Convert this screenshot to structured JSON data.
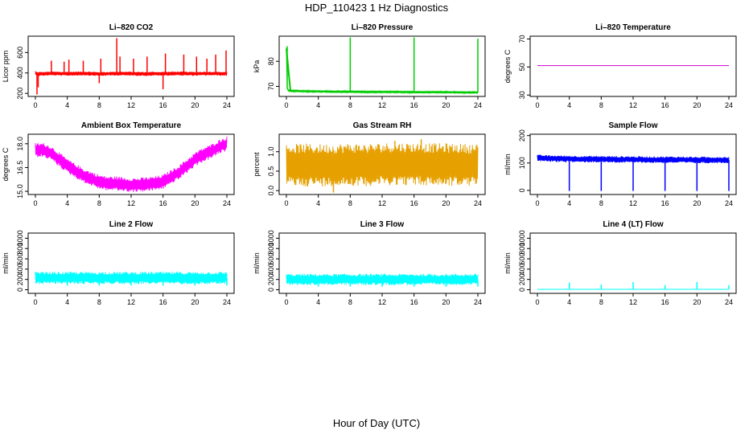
{
  "figure": {
    "title": "HDP_110423  1 Hz Diagnostics",
    "xlabel": "Hour of Day (UTC)"
  },
  "chart_data": [
    {
      "id": "co2",
      "type": "line",
      "title": "Li–820 CO2",
      "ylabel": "Licor ppm",
      "color": "#ff0000",
      "xlim": [
        0,
        24
      ],
      "ylim": [
        170,
        760
      ],
      "xticks": [
        0,
        4,
        8,
        12,
        16,
        20,
        24
      ],
      "yticks": [
        200,
        400,
        600
      ],
      "x": [
        0,
        0.2,
        1,
        2,
        3,
        4,
        5,
        6,
        7,
        8,
        9,
        10,
        11,
        12,
        13,
        14,
        15,
        16,
        17,
        18,
        19,
        20,
        21,
        22,
        23,
        24
      ],
      "values": [
        400,
        390,
        392,
        395,
        393,
        392,
        394,
        396,
        393,
        390,
        392,
        395,
        394,
        393,
        392,
        391,
        393,
        392,
        394,
        395,
        393,
        392,
        394,
        395,
        393,
        392
      ],
      "spikes": [
        {
          "x": 0.2,
          "y": 190
        },
        {
          "x": 0.35,
          "y": 260
        },
        {
          "x": 2.0,
          "y": 520
        },
        {
          "x": 3.6,
          "y": 510
        },
        {
          "x": 4.2,
          "y": 530
        },
        {
          "x": 6.0,
          "y": 520
        },
        {
          "x": 8.0,
          "y": 300
        },
        {
          "x": 8.2,
          "y": 540
        },
        {
          "x": 10.2,
          "y": 740
        },
        {
          "x": 10.6,
          "y": 560
        },
        {
          "x": 12.3,
          "y": 540
        },
        {
          "x": 14.0,
          "y": 560
        },
        {
          "x": 16.0,
          "y": 240
        },
        {
          "x": 16.3,
          "y": 590
        },
        {
          "x": 18.6,
          "y": 580
        },
        {
          "x": 20.2,
          "y": 560
        },
        {
          "x": 21.5,
          "y": 540
        },
        {
          "x": 22.6,
          "y": 580
        },
        {
          "x": 23.9,
          "y": 620
        }
      ],
      "band": 20
    },
    {
      "id": "pressure",
      "type": "line",
      "title": "Li–820 Pressure",
      "ylabel": "kPa",
      "color": "#00cc00",
      "xlim": [
        0,
        24
      ],
      "ylim": [
        66,
        90
      ],
      "xticks": [
        0,
        4,
        8,
        12,
        16,
        20,
        24
      ],
      "yticks": [
        70,
        80
      ],
      "x": [
        0,
        0.1,
        0.3,
        1,
        2,
        4,
        6,
        8,
        10,
        12,
        14,
        16,
        18,
        20,
        22,
        24
      ],
      "values": [
        85,
        69,
        68.3,
        68.2,
        68.1,
        68.0,
        67.9,
        67.9,
        67.8,
        67.8,
        67.8,
        67.7,
        67.7,
        67.7,
        67.6,
        67.6
      ],
      "spikes": [
        {
          "x": 0.1,
          "y": 86
        },
        {
          "x": 8.0,
          "y": 89.5
        },
        {
          "x": 16.0,
          "y": 89.5
        },
        {
          "x": 24.0,
          "y": 89
        }
      ],
      "band": 0.3
    },
    {
      "id": "temperature",
      "type": "line",
      "title": "Li–820 Temperature",
      "ylabel": "degrees C",
      "color": "#cc00cc",
      "xlim": [
        0,
        24
      ],
      "ylim": [
        29,
        72
      ],
      "xticks": [
        0,
        4,
        8,
        12,
        16,
        20,
        24
      ],
      "yticks": [
        30,
        50,
        70
      ],
      "x": [
        0,
        24
      ],
      "values": [
        51,
        51
      ],
      "spikes": [],
      "band": 0
    },
    {
      "id": "ambient",
      "type": "line",
      "title": "Ambient Box Temperature",
      "ylabel": "degrees C",
      "color": "#ff00ff",
      "xlim": [
        0,
        24
      ],
      "ylim": [
        14.8,
        18.6
      ],
      "xticks": [
        0,
        4,
        8,
        12,
        16,
        20,
        24
      ],
      "yticks": [
        15.0,
        16.5,
        18.0
      ],
      "x": [
        0,
        1,
        2,
        3,
        4,
        5,
        6,
        7,
        8,
        9,
        10,
        11,
        12,
        13,
        14,
        15,
        16,
        17,
        18,
        19,
        20,
        21,
        22,
        23,
        24
      ],
      "values": [
        17.6,
        17.6,
        17.4,
        17.0,
        16.6,
        16.3,
        16.0,
        15.8,
        15.6,
        15.5,
        15.5,
        15.45,
        15.4,
        15.4,
        15.45,
        15.5,
        15.6,
        15.9,
        16.2,
        16.6,
        17.0,
        17.3,
        17.5,
        17.8,
        18.0
      ],
      "spikes": [],
      "band": 0.45
    },
    {
      "id": "rh",
      "type": "line",
      "title": "Gas Stream RH",
      "ylabel": "percent",
      "color": "#e6a000",
      "xlim": [
        0,
        24
      ],
      "ylim": [
        -0.1,
        1.45
      ],
      "xticks": [
        0,
        4,
        8,
        12,
        16,
        20,
        24
      ],
      "yticks": [
        0.0,
        0.5,
        1.0
      ],
      "x": [
        0,
        2,
        4,
        6,
        8,
        10,
        12,
        14,
        16,
        18,
        20,
        22,
        24
      ],
      "values": [
        0.65,
        0.66,
        0.65,
        0.66,
        0.67,
        0.66,
        0.68,
        0.69,
        0.68,
        0.67,
        0.67,
        0.66,
        0.65
      ],
      "spikes": [
        {
          "x": 5.9,
          "y": -0.05
        },
        {
          "x": 16.9,
          "y": 1.32
        },
        {
          "x": 13.6,
          "y": 1.28
        }
      ],
      "band": 0.55
    },
    {
      "id": "sample",
      "type": "line",
      "title": "Sample Flow",
      "ylabel": "ml/min",
      "color": "#0000ff",
      "xlim": [
        0,
        24
      ],
      "ylim": [
        -15,
        205
      ],
      "xticks": [
        0,
        4,
        8,
        12,
        16,
        20,
        24
      ],
      "yticks": [
        0,
        100,
        200
      ],
      "x": [
        0,
        2,
        4,
        6,
        8,
        10,
        12,
        14,
        16,
        18,
        20,
        22,
        24
      ],
      "values": [
        118,
        116,
        115,
        114,
        114,
        113,
        113,
        112,
        112,
        112,
        111,
        111,
        111
      ],
      "spikes": [
        {
          "x": 4.0,
          "y": -2
        },
        {
          "x": 8.0,
          "y": -2
        },
        {
          "x": 12.0,
          "y": -2
        },
        {
          "x": 16.0,
          "y": -2
        },
        {
          "x": 20.0,
          "y": -2
        },
        {
          "x": 24.0,
          "y": -2
        }
      ],
      "band": 12
    },
    {
      "id": "line2",
      "type": "line",
      "title": "Line 2 Flow",
      "ylabel": "ml/min",
      "color": "#00ffff",
      "xlim": [
        0,
        24
      ],
      "ylim": [
        -70,
        1100
      ],
      "xticks": [
        0,
        4,
        8,
        12,
        16,
        20,
        24
      ],
      "yticks": [
        0,
        200,
        400,
        600,
        800,
        1000
      ],
      "x": [
        0,
        24
      ],
      "values": [
        230,
        230
      ],
      "spikes": [
        {
          "x": 4.0,
          "y": 80
        },
        {
          "x": 8.0,
          "y": 80
        },
        {
          "x": 12.0,
          "y": 80
        },
        {
          "x": 16.0,
          "y": 80
        },
        {
          "x": 20.0,
          "y": 80
        },
        {
          "x": 24.0,
          "y": 80
        }
      ],
      "band": 120
    },
    {
      "id": "line3",
      "type": "line",
      "title": "Line 3 Flow",
      "ylabel": "ml/min",
      "color": "#00ffff",
      "xlim": [
        0,
        24
      ],
      "ylim": [
        -70,
        1100
      ],
      "xticks": [
        0,
        4,
        8,
        12,
        16,
        20,
        24
      ],
      "yticks": [
        0,
        200,
        400,
        600,
        800,
        1000
      ],
      "x": [
        0,
        24
      ],
      "values": [
        200,
        200
      ],
      "spikes": [
        {
          "x": 4.0,
          "y": 60
        },
        {
          "x": 8.0,
          "y": 60
        },
        {
          "x": 12.0,
          "y": 60
        },
        {
          "x": 16.0,
          "y": 60
        },
        {
          "x": 20.0,
          "y": 60
        },
        {
          "x": 24.0,
          "y": 60
        }
      ],
      "band": 110
    },
    {
      "id": "line4",
      "type": "line",
      "title": "Line 4 (LT) Flow",
      "ylabel": "ml/min",
      "color": "#00ffff",
      "xlim": [
        0,
        24
      ],
      "ylim": [
        -70,
        1100
      ],
      "xticks": [
        0,
        4,
        8,
        12,
        16,
        20,
        24
      ],
      "yticks": [
        0,
        200,
        400,
        600,
        800,
        1000
      ],
      "x": [
        0,
        24
      ],
      "values": [
        8,
        8
      ],
      "spikes": [
        {
          "x": 4.0,
          "y": 140
        },
        {
          "x": 8.0,
          "y": 100
        },
        {
          "x": 12.0,
          "y": 150
        },
        {
          "x": 16.0,
          "y": 90
        },
        {
          "x": 20.0,
          "y": 150
        },
        {
          "x": 24.0,
          "y": 90
        }
      ],
      "band": 0
    }
  ]
}
